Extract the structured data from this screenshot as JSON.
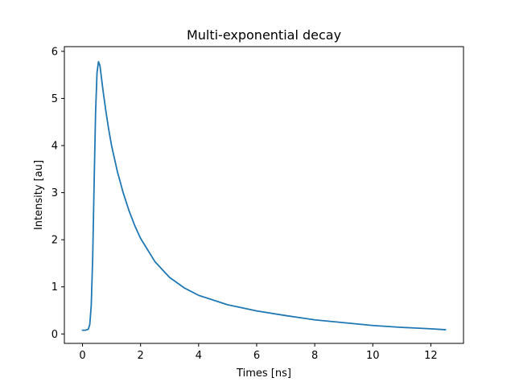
{
  "chart_data": {
    "type": "line",
    "title": "Multi-exponential decay",
    "xlabel": "Times [ns]",
    "ylabel": "Intensity [au]",
    "xlim": [
      -0.625,
      13.125
    ],
    "ylim": [
      -0.2,
      6.1
    ],
    "x_ticks": [
      0,
      2,
      4,
      6,
      8,
      10,
      12
    ],
    "y_ticks": [
      0,
      1,
      2,
      3,
      4,
      5,
      6
    ],
    "grid": false,
    "series": [
      {
        "color": "#1f77b4",
        "x": [
          0.0,
          0.1,
          0.2,
          0.25,
          0.3,
          0.35,
          0.4,
          0.45,
          0.5,
          0.55,
          0.6,
          0.7,
          0.8,
          0.9,
          1.0,
          1.2,
          1.4,
          1.6,
          1.8,
          2.0,
          2.5,
          3.0,
          3.5,
          4.0,
          5.0,
          6.0,
          7.0,
          8.0,
          9.0,
          10.0,
          11.0,
          12.0,
          12.5
        ],
        "y": [
          0.08,
          0.08,
          0.1,
          0.2,
          0.6,
          1.6,
          3.2,
          4.7,
          5.55,
          5.78,
          5.7,
          5.2,
          4.75,
          4.35,
          4.0,
          3.45,
          3.0,
          2.62,
          2.3,
          2.03,
          1.53,
          1.2,
          0.98,
          0.82,
          0.62,
          0.49,
          0.39,
          0.3,
          0.24,
          0.18,
          0.14,
          0.11,
          0.09
        ]
      }
    ]
  }
}
